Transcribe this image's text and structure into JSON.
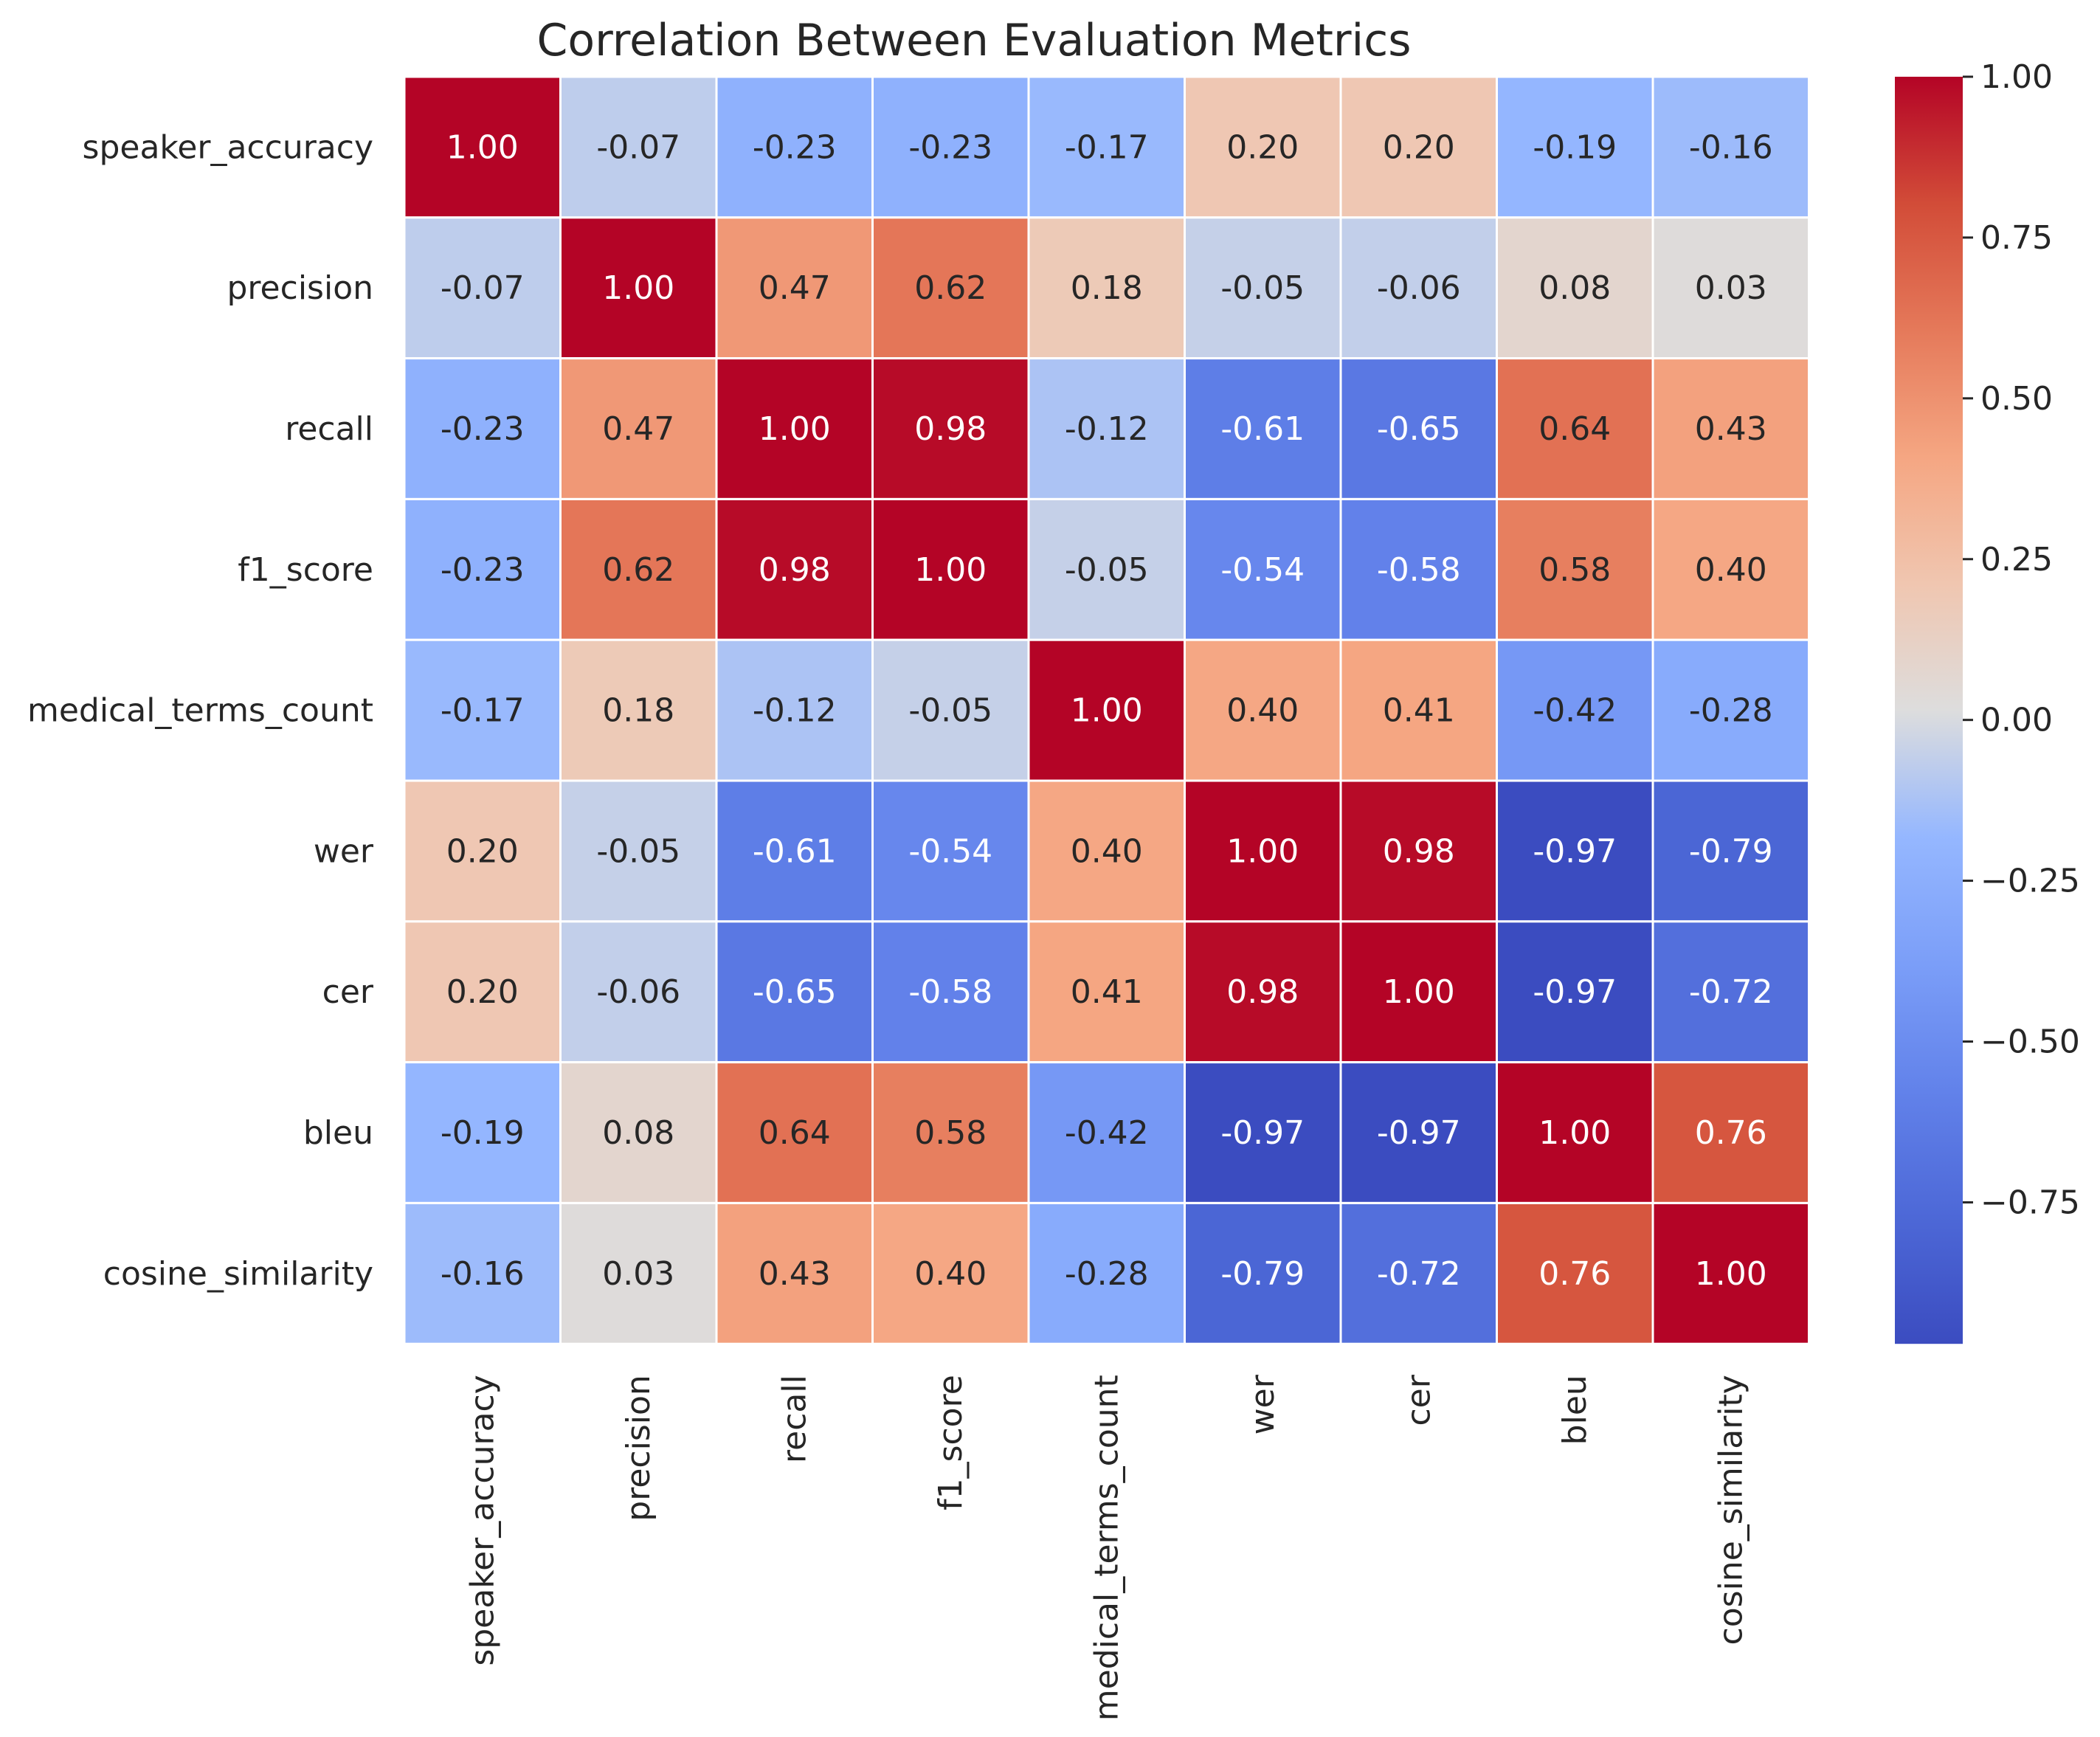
{
  "chart_data": {
    "type": "heatmap",
    "title": "Correlation Between Evaluation Metrics",
    "xlabel": "",
    "ylabel": "",
    "labels": [
      "speaker_accuracy",
      "precision",
      "recall",
      "f1_score",
      "medical_terms_count",
      "wer",
      "cer",
      "bleu",
      "cosine_similarity"
    ],
    "matrix": [
      [
        1.0,
        -0.07,
        -0.23,
        -0.23,
        -0.17,
        0.2,
        0.2,
        -0.19,
        -0.16
      ],
      [
        -0.07,
        1.0,
        0.47,
        0.62,
        0.18,
        -0.05,
        -0.06,
        0.08,
        0.03
      ],
      [
        -0.23,
        0.47,
        1.0,
        0.98,
        -0.12,
        -0.61,
        -0.65,
        0.64,
        0.43
      ],
      [
        -0.23,
        0.62,
        0.98,
        1.0,
        -0.05,
        -0.54,
        -0.58,
        0.58,
        0.4
      ],
      [
        -0.17,
        0.18,
        -0.12,
        -0.05,
        1.0,
        0.4,
        0.41,
        -0.42,
        -0.28
      ],
      [
        0.2,
        -0.05,
        -0.61,
        -0.54,
        0.4,
        1.0,
        0.98,
        -0.97,
        -0.79
      ],
      [
        0.2,
        -0.06,
        -0.65,
        -0.58,
        0.41,
        0.98,
        1.0,
        -0.97,
        -0.72
      ],
      [
        -0.19,
        0.08,
        0.64,
        0.58,
        -0.42,
        -0.97,
        -0.97,
        1.0,
        0.76
      ],
      [
        -0.16,
        0.03,
        0.43,
        0.4,
        -0.28,
        -0.79,
        -0.72,
        0.76,
        1.0
      ]
    ],
    "value_format": "2 decimals",
    "colormap": "coolwarm",
    "color_range": [
      -0.97,
      1.0
    ],
    "colorbar_ticks": [
      1.0,
      0.75,
      0.5,
      0.25,
      0.0,
      -0.25,
      -0.5,
      -0.75
    ],
    "colorbar_tick_labels": [
      "1.00",
      "0.75",
      "0.50",
      "0.25",
      "0.00",
      "−0.25",
      "−0.50",
      "−0.75"
    ],
    "colorbar_placement": "right",
    "cell_borders": "white",
    "grid": false
  }
}
